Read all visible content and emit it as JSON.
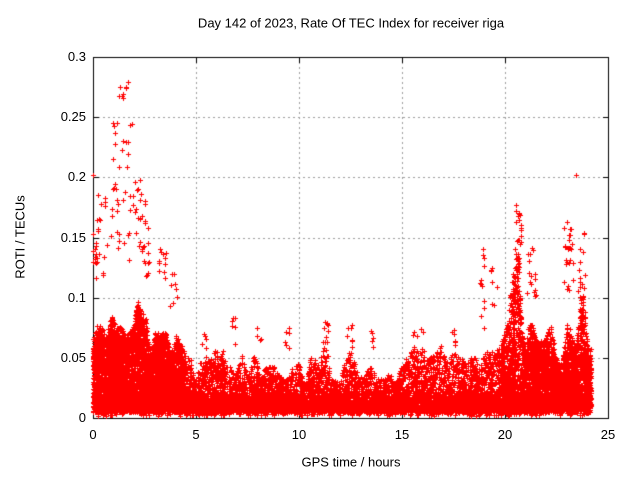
{
  "chart_data": {
    "type": "scatter",
    "title": "Day 142 of 2023, Rate Of TEC Index for receiver riga",
    "xlabel": "GPS time / hours",
    "ylabel": "ROTI / TECUs",
    "xlim": [
      0,
      25
    ],
    "ylim": [
      0,
      0.3
    ],
    "xticks": [
      {
        "v": 0,
        "label": "0"
      },
      {
        "v": 5,
        "label": "5"
      },
      {
        "v": 10,
        "label": "10"
      },
      {
        "v": 15,
        "label": "15"
      },
      {
        "v": 20,
        "label": "20"
      },
      {
        "v": 25,
        "label": "25"
      }
    ],
    "yticks": [
      {
        "v": 0,
        "label": "0"
      },
      {
        "v": 0.05,
        "label": "0.05"
      },
      {
        "v": 0.1,
        "label": "0.1"
      },
      {
        "v": 0.15,
        "label": "0.15"
      },
      {
        "v": 0.2,
        "label": "0.2"
      },
      {
        "v": 0.25,
        "label": "0.25"
      },
      {
        "v": 0.3,
        "label": "0.3"
      }
    ],
    "grid": {
      "show": true,
      "style": "dashed",
      "color": "#9e9e9e"
    },
    "frame_color": "#000000",
    "background": "#ffffff",
    "marker": {
      "shape": "plus",
      "size": 5,
      "color": "#ff0000"
    },
    "legend": null,
    "data_x_range": [
      0,
      24.17
    ],
    "scatter_model": {
      "seed": 1142,
      "base": {
        "n": 9200,
        "gamma": 2.4,
        "y_floor": [
          0.004,
          0.013
        ]
      },
      "envelope_noise": {
        "scale": 3.2,
        "min_frac": 0.52
      },
      "envelope": [
        [
          0.0,
          0.13
        ],
        [
          0.3,
          0.115
        ],
        [
          0.6,
          0.1
        ],
        [
          0.9,
          0.115
        ],
        [
          1.2,
          0.105
        ],
        [
          1.5,
          0.125
        ],
        [
          1.8,
          0.115
        ],
        [
          2.1,
          0.12
        ],
        [
          2.4,
          0.1
        ],
        [
          2.7,
          0.095
        ],
        [
          3.0,
          0.1
        ],
        [
          3.3,
          0.09
        ],
        [
          3.6,
          0.095
        ],
        [
          4.0,
          0.08
        ],
        [
          4.3,
          0.065
        ],
        [
          4.6,
          0.055
        ],
        [
          5.0,
          0.05
        ],
        [
          5.4,
          0.06
        ],
        [
          5.8,
          0.065
        ],
        [
          6.2,
          0.055
        ],
        [
          6.6,
          0.06
        ],
        [
          7.0,
          0.05
        ],
        [
          7.4,
          0.062
        ],
        [
          7.8,
          0.055
        ],
        [
          8.1,
          0.065
        ],
        [
          8.5,
          0.055
        ],
        [
          9.0,
          0.055
        ],
        [
          9.4,
          0.06
        ],
        [
          9.8,
          0.065
        ],
        [
          10.2,
          0.05
        ],
        [
          10.6,
          0.055
        ],
        [
          11.0,
          0.05
        ],
        [
          11.3,
          0.07
        ],
        [
          11.6,
          0.055
        ],
        [
          12.0,
          0.05
        ],
        [
          12.3,
          0.06
        ],
        [
          12.7,
          0.065
        ],
        [
          13.1,
          0.05
        ],
        [
          13.5,
          0.055
        ],
        [
          14.0,
          0.05
        ],
        [
          14.4,
          0.048
        ],
        [
          14.8,
          0.052
        ],
        [
          15.2,
          0.055
        ],
        [
          15.6,
          0.065
        ],
        [
          16.0,
          0.06
        ],
        [
          16.4,
          0.07
        ],
        [
          16.8,
          0.065
        ],
        [
          17.2,
          0.07
        ],
        [
          17.6,
          0.065
        ],
        [
          18.0,
          0.06
        ],
        [
          18.4,
          0.062
        ],
        [
          18.8,
          0.06
        ],
        [
          19.2,
          0.07
        ],
        [
          19.6,
          0.075
        ],
        [
          20.0,
          0.085
        ],
        [
          20.3,
          0.11
        ],
        [
          20.6,
          0.155
        ],
        [
          20.9,
          0.11
        ],
        [
          21.2,
          0.12
        ],
        [
          21.5,
          0.1
        ],
        [
          21.8,
          0.085
        ],
        [
          22.1,
          0.08
        ],
        [
          22.4,
          0.09
        ],
        [
          22.7,
          0.085
        ],
        [
          23.0,
          0.13
        ],
        [
          23.2,
          0.11
        ],
        [
          23.5,
          0.12
        ],
        [
          23.8,
          0.11
        ],
        [
          24.0,
          0.1
        ],
        [
          24.17,
          0.08
        ]
      ],
      "dense_regions": [
        {
          "x": [
            0.0,
            4.35
          ],
          "n": 2600,
          "gamma": 1.35
        },
        {
          "x": [
            19.8,
            24.17
          ],
          "n": 1800,
          "gamma": 1.5
        }
      ],
      "bottom_fringe": {
        "n": 650,
        "y": [
          0.002,
          0.01
        ]
      },
      "outlier_clusters": [
        {
          "x": [
            0.95,
            1.85
          ],
          "y": [
            0.262,
            0.281
          ],
          "n": 8
        },
        {
          "x": [
            0.95,
            1.9
          ],
          "y": [
            0.205,
            0.247
          ],
          "n": 15
        },
        {
          "x": [
            0.0,
            0.1
          ],
          "y": [
            0.197,
            0.205
          ],
          "n": 2
        },
        {
          "x": [
            0.0,
            0.15
          ],
          "y": [
            0.125,
            0.165
          ],
          "n": 6
        },
        {
          "x": [
            0.05,
            0.55
          ],
          "y": [
            0.115,
            0.155
          ],
          "n": 12
        },
        {
          "x": [
            0.2,
            2.6
          ],
          "y": [
            0.13,
            0.2
          ],
          "n": 55
        },
        {
          "x": [
            2.35,
            2.75
          ],
          "y": [
            0.115,
            0.167
          ],
          "n": 14
        },
        {
          "x": [
            3.15,
            3.55
          ],
          "y": [
            0.115,
            0.152
          ],
          "n": 12
        },
        {
          "x": [
            3.6,
            4.1
          ],
          "y": [
            0.09,
            0.12
          ],
          "n": 8
        },
        {
          "x": [
            5.3,
            5.6
          ],
          "y": [
            0.055,
            0.07
          ],
          "n": 5
        },
        {
          "x": [
            6.7,
            6.95
          ],
          "y": [
            0.06,
            0.085
          ],
          "n": 7
        },
        {
          "x": [
            7.9,
            8.15
          ],
          "y": [
            0.06,
            0.075
          ],
          "n": 5
        },
        {
          "x": [
            9.3,
            9.55
          ],
          "y": [
            0.058,
            0.075
          ],
          "n": 6
        },
        {
          "x": [
            11.15,
            11.45
          ],
          "y": [
            0.06,
            0.082
          ],
          "n": 9
        },
        {
          "x": [
            12.3,
            12.6
          ],
          "y": [
            0.058,
            0.078
          ],
          "n": 7
        },
        {
          "x": [
            13.4,
            13.6
          ],
          "y": [
            0.055,
            0.075
          ],
          "n": 5
        },
        {
          "x": [
            15.5,
            15.8
          ],
          "y": [
            0.055,
            0.073
          ],
          "n": 6
        },
        {
          "x": [
            15.9,
            16.1
          ],
          "y": [
            0.055,
            0.075
          ],
          "n": 5
        },
        {
          "x": [
            17.4,
            17.65
          ],
          "y": [
            0.06,
            0.08
          ],
          "n": 6
        },
        {
          "x": [
            18.78,
            18.98
          ],
          "y": [
            0.068,
            0.147
          ],
          "n": 13
        },
        {
          "x": [
            19.25,
            19.6
          ],
          "y": [
            0.085,
            0.128
          ],
          "n": 8
        },
        {
          "x": [
            20.5,
            20.78
          ],
          "y": [
            0.125,
            0.182
          ],
          "n": 24
        },
        {
          "x": [
            21.05,
            21.5
          ],
          "y": [
            0.1,
            0.142
          ],
          "n": 16
        },
        {
          "x": [
            22.85,
            23.3
          ],
          "y": [
            0.1,
            0.165
          ],
          "n": 26
        },
        {
          "x": [
            23.42,
            23.55
          ],
          "y": [
            0.198,
            0.203
          ],
          "n": 1
        },
        {
          "x": [
            23.5,
            23.95
          ],
          "y": [
            0.1,
            0.155
          ],
          "n": 14
        }
      ]
    }
  }
}
